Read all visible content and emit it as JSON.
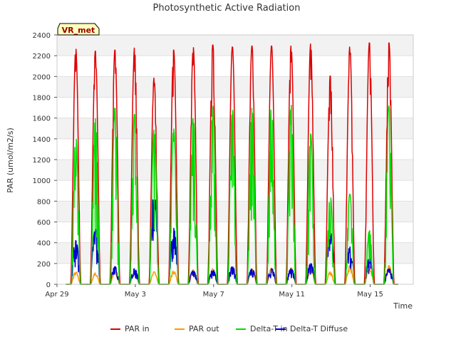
{
  "chart_data": {
    "type": "line",
    "title": "Photosynthetic Active Radiation",
    "xlabel": "Time",
    "ylabel": "PAR (umol/m2/s)",
    "site_label": "VR_met",
    "ylim": [
      0,
      2400
    ],
    "yticks": [
      0,
      200,
      400,
      600,
      800,
      1000,
      1200,
      1400,
      1600,
      1800,
      2000,
      2200,
      2400
    ],
    "xlim_days": [
      0,
      18.2
    ],
    "xticks": [
      {
        "day": 0,
        "label": "Apr 29"
      },
      {
        "day": 4,
        "label": "May 3"
      },
      {
        "day": 8,
        "label": "May 7"
      },
      {
        "day": 12,
        "label": "May 11"
      },
      {
        "day": 16,
        "label": "May 15"
      }
    ],
    "legend_position": "bottom",
    "series": [
      {
        "name": "PAR in",
        "color": "#dd0000",
        "daily_peak": [
          2270,
          2250,
          2260,
          2280,
          1990,
          2260,
          2285,
          2310,
          2290,
          2300,
          2300,
          2300,
          2320,
          2010,
          2290,
          2330,
          2330
        ]
      },
      {
        "name": "PAR out",
        "color": "#ff9900",
        "daily_peak": [
          120,
          110,
          120,
          130,
          120,
          130,
          140,
          150,
          150,
          150,
          160,
          160,
          150,
          120,
          180,
          170,
          180
        ]
      },
      {
        "name": "Delta-T in",
        "color": "#00dd00",
        "daily_peak": [
          1440,
          1600,
          1700,
          1640,
          1490,
          1500,
          1600,
          1720,
          1680,
          1700,
          1730,
          1730,
          1450,
          860,
          870,
          520,
          1720
        ]
      },
      {
        "name": "Delta-T Diffuse",
        "color": "#0000cc",
        "daily_peak": [
          420,
          530,
          170,
          150,
          900,
          540,
          130,
          140,
          170,
          150,
          150,
          150,
          200,
          510,
          360,
          250,
          150
        ]
      }
    ]
  }
}
